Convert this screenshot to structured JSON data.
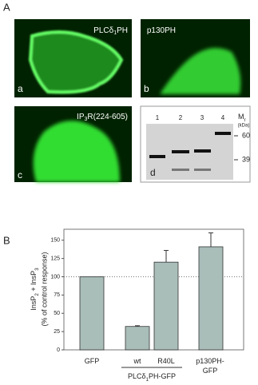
{
  "panel_a": {
    "label": "A",
    "images": [
      {
        "title_parts": [
          "PLCδ",
          "1",
          "PH"
        ],
        "letter": "a"
      },
      {
        "title_parts": [
          "p130PH"
        ],
        "letter": "b"
      },
      {
        "title_parts": [
          "IP",
          "3",
          "R(224-605)"
        ],
        "letter": "c"
      }
    ],
    "gel": {
      "lanes": [
        "1",
        "2",
        "3",
        "4"
      ],
      "mr_parts": [
        "M",
        "r"
      ],
      "mr_unit": "(kDa)",
      "markers": [
        60,
        39
      ],
      "letter": "d"
    }
  },
  "panel_b": {
    "label": "B"
  },
  "chart_data": {
    "type": "bar",
    "y_label_parts": [
      "InsP",
      "2",
      " + InsP",
      "3"
    ],
    "y_label_line2": "(% of control response)",
    "categories": [
      "GFP",
      "wt",
      "R40L",
      "p130PH-GFP"
    ],
    "group_label_parts": [
      "PLCδ",
      "1",
      "PH-GFP"
    ],
    "values": [
      100,
      32,
      120,
      141
    ],
    "errors": [
      null,
      1,
      16,
      19
    ],
    "color": "#a9bdb9",
    "ylim": [
      0,
      165
    ],
    "yticks": [
      0,
      25,
      50,
      75,
      100,
      125,
      150
    ],
    "reference_line": 100
  }
}
